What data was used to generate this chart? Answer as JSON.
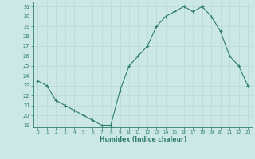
{
  "x": [
    0,
    1,
    2,
    3,
    4,
    5,
    6,
    7,
    8,
    9,
    10,
    11,
    12,
    13,
    14,
    15,
    16,
    17,
    18,
    19,
    20,
    21,
    22,
    23
  ],
  "y": [
    23.5,
    23.0,
    21.5,
    21.0,
    20.5,
    20.0,
    19.5,
    19.0,
    19.0,
    22.5,
    25.0,
    26.0,
    27.0,
    29.0,
    30.0,
    30.5,
    31.0,
    30.5,
    31.0,
    30.0,
    28.5,
    26.0,
    25.0,
    23.0
  ],
  "xlabel": "Humidex (Indice chaleur)",
  "xlim": [
    -0.5,
    23.5
  ],
  "ylim": [
    18.8,
    31.5
  ],
  "yticks": [
    19,
    20,
    21,
    22,
    23,
    24,
    25,
    26,
    27,
    28,
    29,
    30,
    31
  ],
  "xticks": [
    0,
    1,
    2,
    3,
    4,
    5,
    6,
    7,
    8,
    9,
    10,
    11,
    12,
    13,
    14,
    15,
    16,
    17,
    18,
    19,
    20,
    21,
    22,
    23
  ],
  "line_color": "#2e7d6e",
  "marker_color": "#2e7d6e",
  "bg_color": "#cce8e4",
  "grid_color": "#b8d8d4",
  "axis_color": "#2e7d6e",
  "label_color": "#2e7d6e",
  "tick_color": "#2e7d6e"
}
